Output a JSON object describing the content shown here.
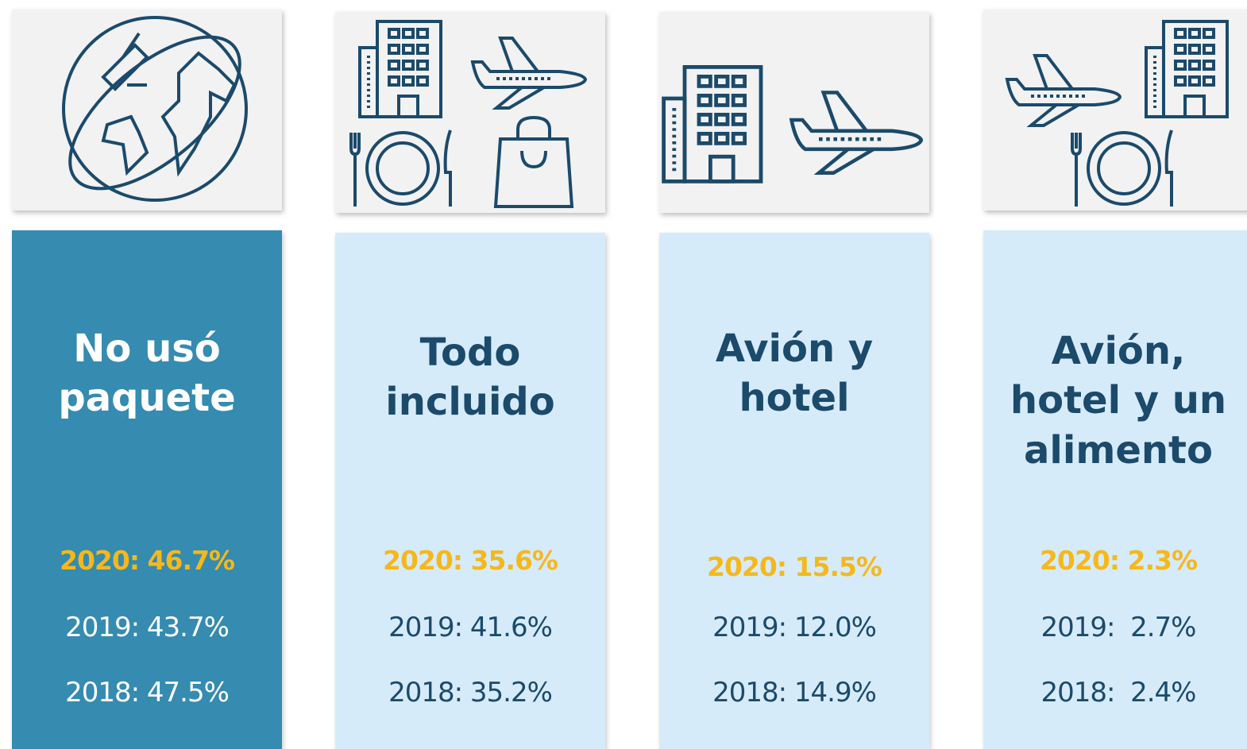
{
  "cards": [
    {
      "title_lines": [
        "No usó",
        "paquete"
      ],
      "stats": [
        "2020: 46.7%",
        "2019: 43.7%",
        "2018: 47.5%"
      ]
    },
    {
      "title_lines": [
        "Todo",
        "incluido"
      ],
      "stats": [
        "2020: 35.6%",
        "2019: 41.6%",
        "2018: 35.2%"
      ]
    },
    {
      "title_lines": [
        "Avión y",
        "hotel"
      ],
      "stats": [
        "2020: 15.5%",
        "2019: 12.0%",
        "2018: 14.9%"
      ]
    },
    {
      "title_lines": [
        "Avión,",
        "hotel y un",
        "alimento"
      ],
      "stats": [
        "2020: 2.3%",
        "2019:  2.7%",
        "2018:  2.4%"
      ]
    }
  ]
}
